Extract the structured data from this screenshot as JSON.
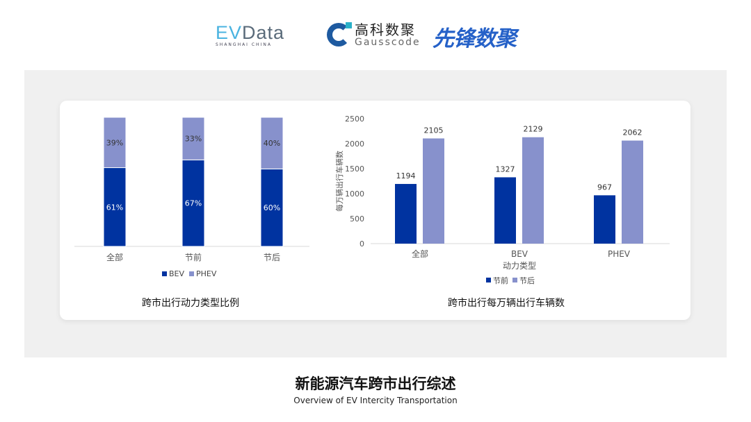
{
  "logos": {
    "evdata_a": "EV",
    "evdata_b": "Data",
    "evdata_sub": "SHANGHAI CHINA",
    "gauss_cn": "高科数聚",
    "gauss_en": "Gausscode",
    "xf": "先锋数聚"
  },
  "chart_data": [
    {
      "type": "bar",
      "stacked": "percent",
      "categories": [
        "全部",
        "节前",
        "节后"
      ],
      "series": [
        {
          "name": "BEV",
          "values": [
            61,
            67,
            60
          ],
          "color": "#0033a0"
        },
        {
          "name": "PHEV",
          "values": [
            39,
            33,
            40
          ],
          "color": "#8791cc"
        }
      ],
      "title": "跨市出行动力类型比例",
      "legend": "bottom",
      "ylim": [
        0,
        100
      ]
    },
    {
      "type": "bar",
      "categories": [
        "全部",
        "BEV",
        "PHEV"
      ],
      "series": [
        {
          "name": "节前",
          "values": [
            1194,
            1327,
            967
          ],
          "color": "#0033a0"
        },
        {
          "name": "节后",
          "values": [
            2105,
            2129,
            2062
          ],
          "color": "#8791cc"
        }
      ],
      "title": "跨市出行每万辆出行车辆数",
      "xlabel": "动力类型",
      "ylabel": "每万辆出行车辆数",
      "ylim": [
        0,
        2500
      ],
      "yticks": [
        0,
        500,
        1000,
        1500,
        2000,
        2500
      ],
      "legend": "bottom"
    }
  ],
  "footer": {
    "title": "新能源汽车跨市出行综述",
    "subtitle": "Overview of EV Intercity Transportation"
  }
}
